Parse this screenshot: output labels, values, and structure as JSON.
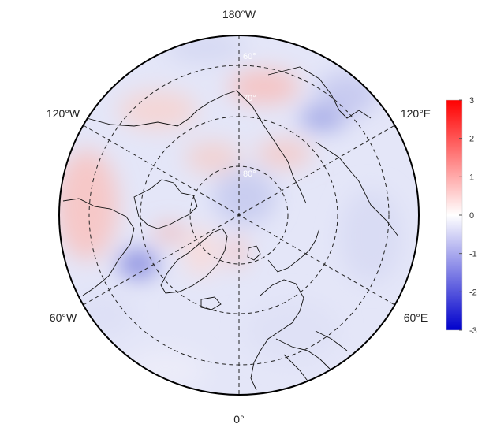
{
  "map": {
    "projection": "north polar stereographic",
    "longitude_labels": {
      "top": "180°W",
      "upper_left": "120°W",
      "upper_right": "120°E",
      "lower_left": "60°W",
      "lower_right": "60°E",
      "bottom": "0°"
    },
    "latitude_labels": [
      "60°",
      "70°",
      "80°"
    ],
    "graticule": "dashed"
  },
  "colorbar": {
    "min": -3,
    "max": 3,
    "ticks": [
      "3",
      "2",
      "1",
      "0",
      "-1",
      "-2",
      "-3"
    ],
    "colors": {
      "high": "#ff0000",
      "mid": "#ffffff",
      "low": "#0000cc"
    }
  }
}
